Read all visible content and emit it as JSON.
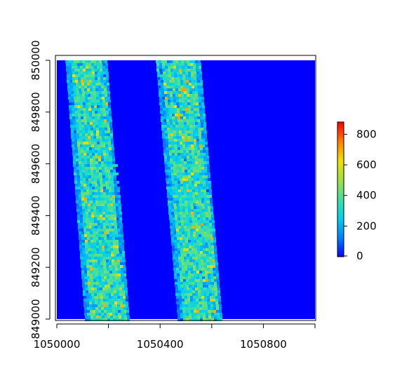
{
  "chart_data": {
    "type": "heatmap",
    "title": "",
    "xlabel": "",
    "ylabel": "",
    "xlim": [
      1050000,
      1051000
    ],
    "ylim": [
      849000,
      850000
    ],
    "x_ticks": [
      1050000,
      1050200,
      1050400,
      1050600,
      1050800,
      1051000
    ],
    "x_tick_labels": [
      "1050000",
      "1050400",
      "1050800"
    ],
    "y_ticks": [
      849000,
      849200,
      849400,
      849600,
      849800,
      850000
    ],
    "y_tick_labels": [
      "849000",
      "849200",
      "849400",
      "849600",
      "849800",
      "850000"
    ],
    "background_value": 0,
    "bands": [
      {
        "name": "",
        "top_x_range": [
          1050035,
          1050190
        ],
        "bottom_x_range": [
          1050110,
          1050280
        ],
        "typical_value": 330,
        "max_value": 700
      },
      {
        "name": "",
        "top_x_range": [
          1050385,
          1050550
        ],
        "bottom_x_range": [
          1050470,
          1050640
        ],
        "typical_value": 330,
        "max_value": 720
      }
    ],
    "colorbar": {
      "min": 0,
      "max": 880,
      "ticks": [
        0,
        200,
        400,
        600,
        800
      ],
      "tick_labels": [
        "0",
        "200",
        "400",
        "600",
        "800"
      ],
      "colors": [
        "#0000ff",
        "#0080ff",
        "#00d0f0",
        "#40e0a0",
        "#a0e040",
        "#f0e000",
        "#ff8000",
        "#ff0000"
      ]
    },
    "grid": false,
    "legend": "colorbar right"
  }
}
